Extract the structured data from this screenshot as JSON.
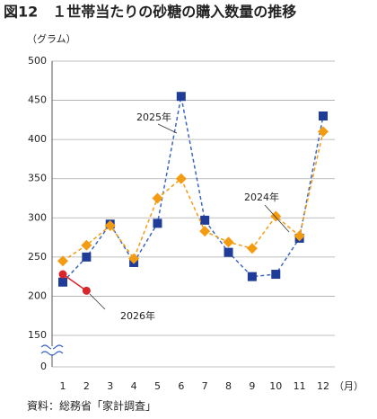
{
  "chart_data": {
    "type": "line",
    "title": "図12　１世帯当たりの砂糖の購入数量の推移",
    "y_unit": "（グラム）",
    "x_unit": "（月）",
    "source": "資料：総務省「家計調査」",
    "categories": [
      "1",
      "2",
      "3",
      "4",
      "5",
      "6",
      "7",
      "8",
      "9",
      "10",
      "11",
      "12"
    ],
    "ylim": [
      0,
      500
    ],
    "axis_break": [
      0,
      150
    ],
    "yticks": [
      0,
      150,
      200,
      250,
      300,
      350,
      400,
      450,
      500
    ],
    "grid": true,
    "series": [
      {
        "name": "2025年",
        "color": "#1f3c99",
        "line_color": "#3d66c4",
        "marker": "square",
        "dashed": true,
        "values": [
          218,
          250,
          292,
          243,
          293,
          455,
          297,
          256,
          225,
          228,
          274,
          430
        ]
      },
      {
        "name": "2024年",
        "color": "#f39c12",
        "line_color": "#f39c12",
        "marker": "diamond",
        "dashed": true,
        "values": [
          245,
          265,
          290,
          248,
          325,
          350,
          283,
          269,
          261,
          302,
          277,
          410
        ]
      },
      {
        "name": "2026年",
        "color": "#d9262c",
        "line_color": "#d9262c",
        "marker": "circle",
        "dashed": false,
        "values": [
          228,
          207,
          null,
          null,
          null,
          null,
          null,
          null,
          null,
          null,
          null,
          null
        ]
      }
    ]
  }
}
